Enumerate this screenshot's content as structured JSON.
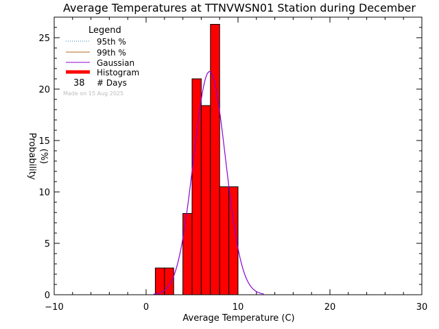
{
  "chart_data": {
    "type": "bar",
    "title": "Average Temperatures at TTNVWSN01 Station during December",
    "xlabel": "Average Temperature (C)",
    "ylabel": "Probability",
    "ylabel2": "(%)",
    "xlim": [
      -10,
      30
    ],
    "ylim": [
      0,
      27
    ],
    "xticks": [
      -10,
      0,
      10,
      20,
      30
    ],
    "yticks": [
      0,
      5,
      10,
      15,
      20,
      25
    ],
    "bins": [
      {
        "x0": 1,
        "x1": 2,
        "value": 2.6
      },
      {
        "x0": 2,
        "x1": 3,
        "value": 2.6
      },
      {
        "x0": 4,
        "x1": 5,
        "value": 7.9
      },
      {
        "x0": 5,
        "x1": 6,
        "value": 21.0
      },
      {
        "x0": 6,
        "x1": 7,
        "value": 18.4
      },
      {
        "x0": 7,
        "x1": 8,
        "value": 26.3
      },
      {
        "x0": 8,
        "x1": 9,
        "value": 10.5
      },
      {
        "x0": 9,
        "x1": 10,
        "value": 10.5
      }
    ],
    "gaussian": {
      "mean": 6.9,
      "sigma": 1.75,
      "peak": 21.7,
      "range": [
        0.8,
        12.8
      ]
    },
    "legend": {
      "title": "Legend",
      "placement": "top-left",
      "entries": [
        {
          "label": "95th %",
          "style": "dotted",
          "color": "#2a7ab8"
        },
        {
          "label": "99th %",
          "style": "solid",
          "color": "#b5651d"
        },
        {
          "label": "Gaussian",
          "style": "solid",
          "color": "#8a00d4"
        },
        {
          "label": "Histogram",
          "style": "thick",
          "color": "#ff0000"
        }
      ],
      "days_count": "38",
      "days_label": "# Days",
      "made_on": "Made on 15 Aug 2025"
    },
    "colors": {
      "bar_fill": "#ff0000",
      "bar_edge": "#000000",
      "gaussian": "#8a00d4"
    }
  }
}
